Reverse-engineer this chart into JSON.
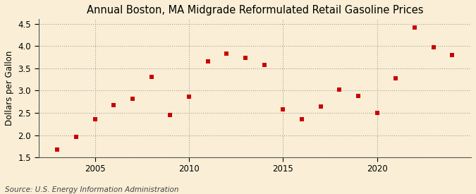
{
  "title": "Annual Boston, MA Midgrade Reformulated Retail Gasoline Prices",
  "ylabel": "Dollars per Gallon",
  "source": "Source: U.S. Energy Information Administration",
  "background_color": "#faefd6",
  "marker_color": "#cc0000",
  "years": [
    2003,
    2004,
    2005,
    2006,
    2007,
    2008,
    2009,
    2010,
    2011,
    2012,
    2013,
    2014,
    2015,
    2016,
    2017,
    2018,
    2019,
    2020,
    2021,
    2022,
    2023,
    2024
  ],
  "prices": [
    1.68,
    1.97,
    2.36,
    2.67,
    2.82,
    3.3,
    2.45,
    2.87,
    3.66,
    3.83,
    3.73,
    3.58,
    2.58,
    2.36,
    2.64,
    3.02,
    2.88,
    2.5,
    3.27,
    4.42,
    3.97,
    3.8
  ],
  "xlim": [
    2002.0,
    2025.0
  ],
  "ylim": [
    1.5,
    4.6
  ],
  "yticks": [
    1.5,
    2.0,
    2.5,
    3.0,
    3.5,
    4.0,
    4.5
  ],
  "xticks": [
    2005,
    2010,
    2015,
    2020
  ],
  "grid_color": "#a0a0a0",
  "title_fontsize": 10.5,
  "label_fontsize": 8.5,
  "source_fontsize": 7.5,
  "marker_size": 15
}
